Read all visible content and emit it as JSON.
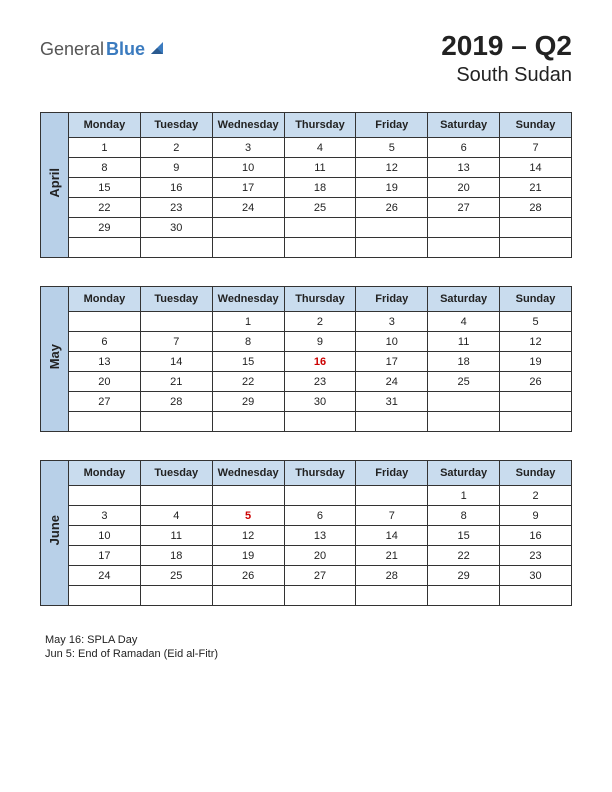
{
  "logo": {
    "text_general": "General",
    "text_blue": "Blue"
  },
  "header": {
    "year_quarter": "2019 – Q2",
    "country": "South Sudan"
  },
  "day_headers": [
    "Monday",
    "Tuesday",
    "Wednesday",
    "Thursday",
    "Friday",
    "Saturday",
    "Sunday"
  ],
  "months": [
    {
      "name": "April",
      "weeks": [
        [
          "1",
          "2",
          "3",
          "4",
          "5",
          "6",
          "7"
        ],
        [
          "8",
          "9",
          "10",
          "11",
          "12",
          "13",
          "14"
        ],
        [
          "15",
          "16",
          "17",
          "18",
          "19",
          "20",
          "21"
        ],
        [
          "22",
          "23",
          "24",
          "25",
          "26",
          "27",
          "28"
        ],
        [
          "29",
          "30",
          "",
          "",
          "",
          "",
          ""
        ],
        [
          "",
          "",
          "",
          "",
          "",
          "",
          ""
        ]
      ],
      "holidays": []
    },
    {
      "name": "May",
      "weeks": [
        [
          "",
          "",
          "1",
          "2",
          "3",
          "4",
          "5"
        ],
        [
          "6",
          "7",
          "8",
          "9",
          "10",
          "11",
          "12"
        ],
        [
          "13",
          "14",
          "15",
          "16",
          "17",
          "18",
          "19"
        ],
        [
          "20",
          "21",
          "22",
          "23",
          "24",
          "25",
          "26"
        ],
        [
          "27",
          "28",
          "29",
          "30",
          "31",
          "",
          ""
        ],
        [
          "",
          "",
          "",
          "",
          "",
          "",
          ""
        ]
      ],
      "holidays": [
        {
          "row": 2,
          "col": 3
        }
      ]
    },
    {
      "name": "June",
      "weeks": [
        [
          "",
          "",
          "",
          "",
          "",
          "1",
          "2"
        ],
        [
          "3",
          "4",
          "5",
          "6",
          "7",
          "8",
          "9"
        ],
        [
          "10",
          "11",
          "12",
          "13",
          "14",
          "15",
          "16"
        ],
        [
          "17",
          "18",
          "19",
          "20",
          "21",
          "22",
          "23"
        ],
        [
          "24",
          "25",
          "26",
          "27",
          "28",
          "29",
          "30"
        ],
        [
          "",
          "",
          "",
          "",
          "",
          "",
          ""
        ]
      ],
      "holidays": [
        {
          "row": 1,
          "col": 2
        }
      ]
    }
  ],
  "holiday_notes": [
    "May 16: SPLA Day",
    "Jun 5: End of Ramadan (Eid al-Fitr)"
  ],
  "colors": {
    "month_label_bg": "#b8d0e8",
    "day_header_bg": "#c9dcee",
    "border": "#333333",
    "holiday_text": "#cc0000",
    "logo_blue": "#3b7bbf",
    "logo_gray": "#555555"
  }
}
